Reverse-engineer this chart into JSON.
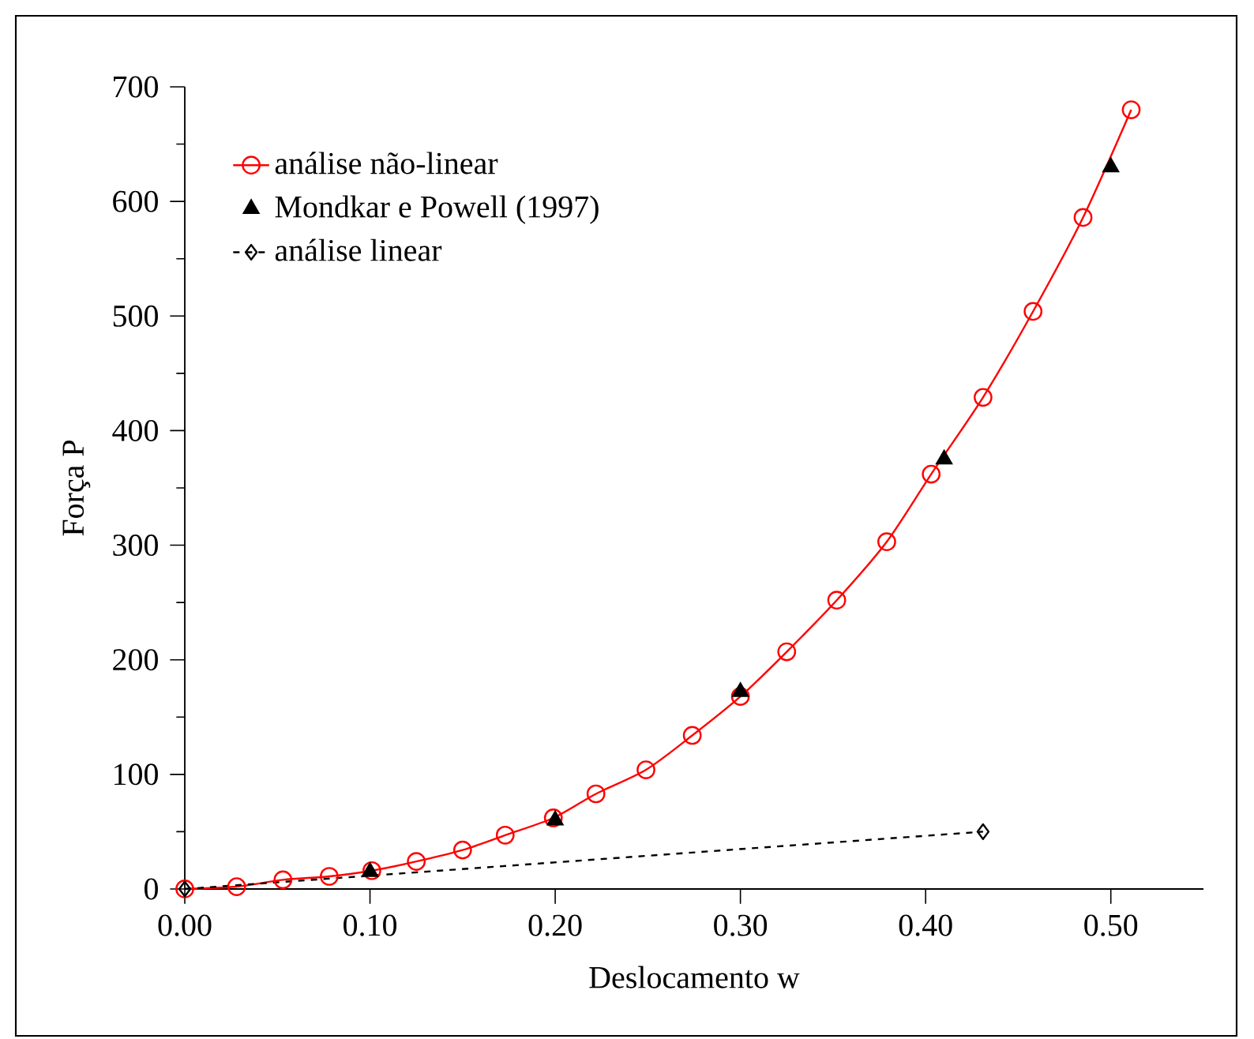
{
  "chart_data": {
    "type": "line",
    "xlabel": "Deslocamento w",
    "ylabel": "Força P",
    "xlim": [
      0,
      0.55
    ],
    "ylim": [
      0,
      700
    ],
    "xticks": [
      {
        "value": 0,
        "label": "0.00"
      },
      {
        "value": 0.1,
        "label": "0.10"
      },
      {
        "value": 0.2,
        "label": "0.20"
      },
      {
        "value": 0.3,
        "label": "0.30"
      },
      {
        "value": 0.4,
        "label": "0.40"
      },
      {
        "value": 0.5,
        "label": "0.50"
      }
    ],
    "yticks": [
      0,
      100,
      200,
      300,
      400,
      500,
      600,
      700
    ],
    "grid": false,
    "legend": "top left",
    "series": [
      {
        "name": "análise não-linear",
        "color": "#ff0000",
        "marker": "circle",
        "line_style": "solid",
        "x": [
          0,
          0.028,
          0.053,
          0.078,
          0.101,
          0.125,
          0.15,
          0.173,
          0.199,
          0.222,
          0.249,
          0.274,
          0.3,
          0.325,
          0.352,
          0.379,
          0.403,
          0.431,
          0.458,
          0.485,
          0.511
        ],
        "values": [
          0,
          2,
          8,
          11,
          16,
          24,
          34,
          47,
          62,
          83,
          104,
          134,
          168,
          207,
          252,
          303,
          362,
          429,
          504,
          586,
          680
        ]
      },
      {
        "name": "Mondkar e Powell (1997)",
        "type": "scatter",
        "color": "#000000",
        "marker": "triangle",
        "x": [
          0.1,
          0.2,
          0.3,
          0.41,
          0.5
        ],
        "values": [
          15,
          60,
          172,
          375,
          630
        ]
      },
      {
        "name": "análise linear",
        "color": "#000000",
        "marker": "diamond",
        "line_style": "dashed",
        "x": [
          0,
          0.431
        ],
        "values": [
          0,
          50
        ]
      }
    ]
  }
}
